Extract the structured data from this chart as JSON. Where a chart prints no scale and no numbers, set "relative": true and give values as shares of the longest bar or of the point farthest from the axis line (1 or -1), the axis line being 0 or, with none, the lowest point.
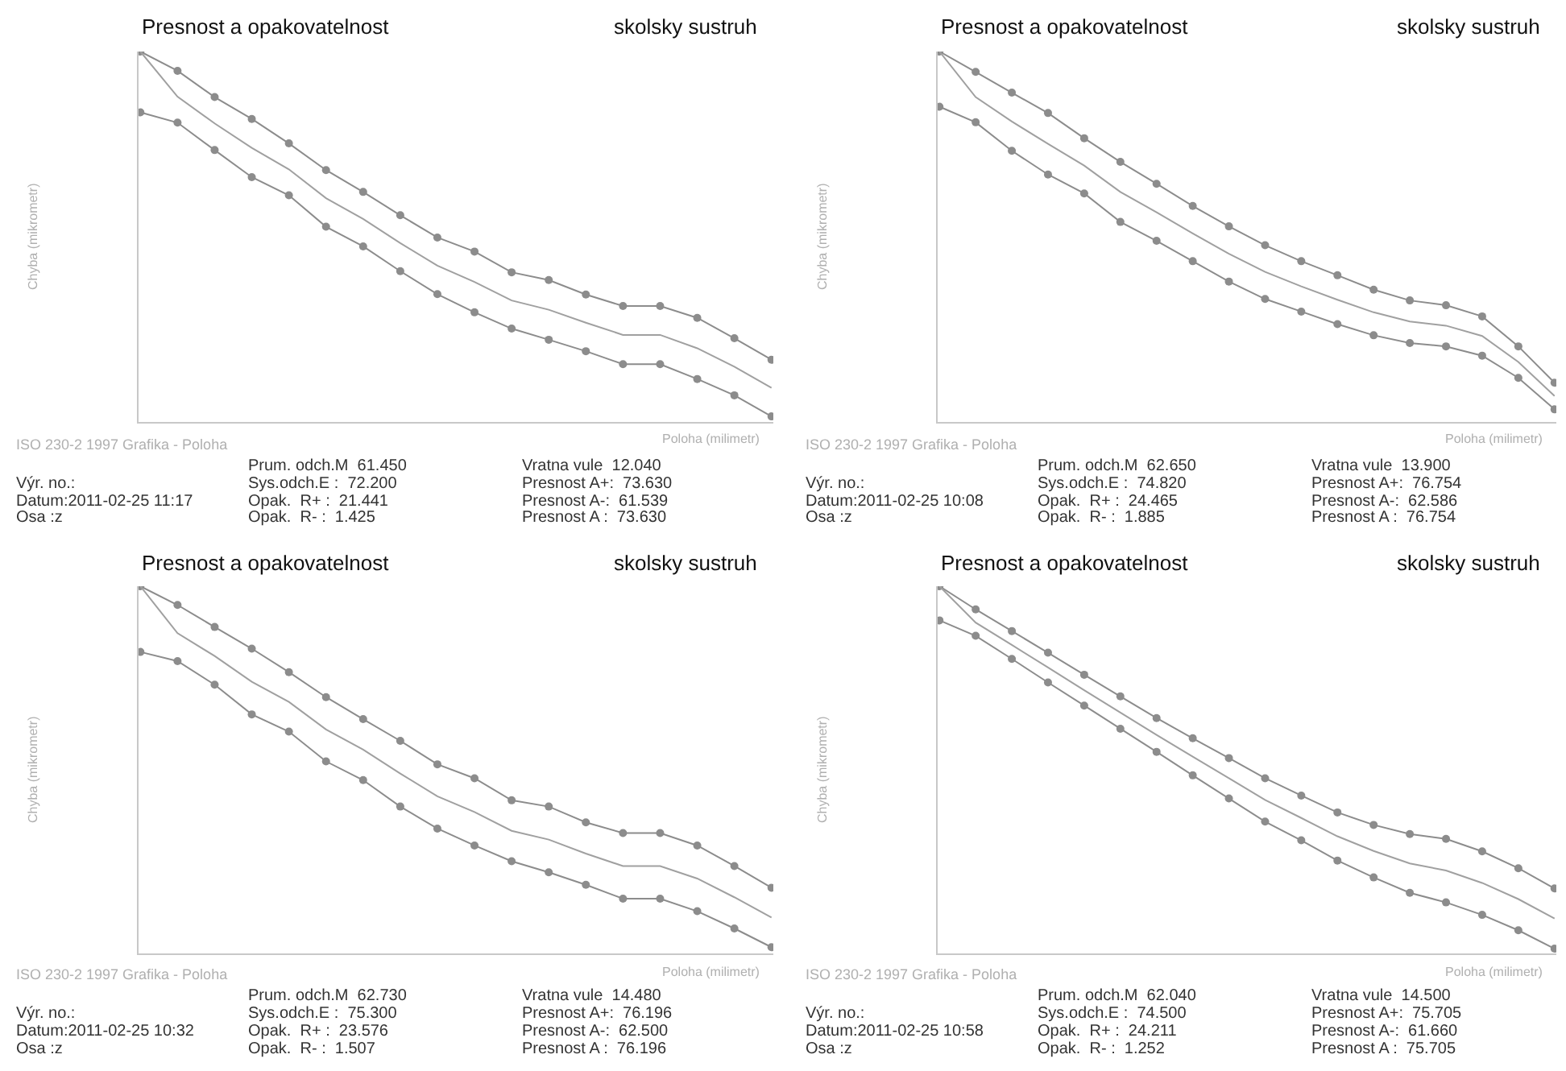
{
  "chart_data": [
    {
      "type": "line",
      "title": "Presnost a opakovatelnost",
      "subtitle": "skolsky sustruh",
      "xlabel": "Poloha (milimetr)",
      "ylabel": "Chyba (mikrometr)",
      "relative": true,
      "marker": "circle",
      "categories": [
        null,
        null,
        null,
        null,
        null,
        null,
        null,
        null,
        null,
        null,
        null,
        null,
        null,
        null,
        null,
        null,
        null,
        null
      ],
      "series": [
        {
          "color": "#8c8c8c",
          "values": [
            1.0,
            0.948,
            0.877,
            0.818,
            0.752,
            0.68,
            0.621,
            0.558,
            0.498,
            0.46,
            0.404,
            0.383,
            0.344,
            0.313,
            0.313,
            0.281,
            0.226,
            0.168
          ]
        },
        {
          "color": "#a0a0a0",
          "marker": "none",
          "values": [
            1.0,
            0.878,
            0.806,
            0.74,
            0.682,
            0.604,
            0.548,
            0.483,
            0.422,
            0.378,
            0.328,
            0.303,
            0.268,
            0.235,
            0.235,
            0.199,
            0.149,
            0.092
          ]
        },
        {
          "color": "#8c8c8c",
          "values": [
            0.836,
            0.808,
            0.734,
            0.661,
            0.612,
            0.527,
            0.474,
            0.407,
            0.345,
            0.296,
            0.252,
            0.222,
            0.191,
            0.156,
            0.156,
            0.116,
            0.072,
            0.015
          ]
        }
      ],
      "annotations": [
        "ISO 230-2 1997 Grafika - Poloha",
        "Výr. no.:",
        "Datum:2011-02-25 11:17",
        "Osa :z",
        "Prum. odch.M  61.450",
        "Sys.odch.E :  72.200",
        "Opak.  R+ :  21.441",
        "Opak.  R- :  1.425",
        "Vratna vule  12.040",
        "Presnost A+:  73.630",
        "Presnost A-:  61.539",
        "Presnost A :  73.630"
      ]
    },
    {
      "type": "line",
      "title": "Presnost a opakovatelnost",
      "subtitle": "skolsky sustruh",
      "xlabel": "Poloha (milimetr)",
      "ylabel": "Chyba (mikrometr)",
      "relative": true,
      "marker": "circle",
      "categories": [
        null,
        null,
        null,
        null,
        null,
        null,
        null,
        null,
        null,
        null,
        null,
        null,
        null,
        null,
        null,
        null,
        null,
        null
      ],
      "series": [
        {
          "color": "#8c8c8c",
          "values": [
            1.0,
            0.945,
            0.889,
            0.834,
            0.766,
            0.702,
            0.643,
            0.583,
            0.528,
            0.477,
            0.434,
            0.396,
            0.357,
            0.328,
            0.315,
            0.285,
            0.204,
            0.106
          ]
        },
        {
          "color": "#a0a0a0",
          "marker": "none",
          "values": [
            1.0,
            0.877,
            0.811,
            0.751,
            0.692,
            0.621,
            0.566,
            0.509,
            0.454,
            0.405,
            0.366,
            0.33,
            0.296,
            0.271,
            0.26,
            0.232,
            0.162,
            0.07
          ]
        },
        {
          "color": "#8c8c8c",
          "values": [
            0.851,
            0.809,
            0.732,
            0.668,
            0.617,
            0.54,
            0.489,
            0.434,
            0.379,
            0.332,
            0.298,
            0.264,
            0.234,
            0.213,
            0.204,
            0.179,
            0.119,
            0.034
          ]
        }
      ],
      "annotations": [
        "ISO 230-2 1997 Grafika - Poloha",
        "Výr. no.:",
        "Datum:2011-02-25 10:08",
        "Osa :z",
        "Prum. odch.M  62.650",
        "Sys.odch.E :  74.820",
        "Opak.  R+ :  24.465",
        "Opak.  R- :  1.885",
        "Vratna vule  13.900",
        "Presnost A+:  76.754",
        "Presnost A-:  62.586",
        "Presnost A :  76.754"
      ]
    },
    {
      "type": "line",
      "title": "Presnost a opakovatelnost",
      "subtitle": "skolsky sustruh",
      "xlabel": "Poloha (milimetr)",
      "ylabel": "Chyba (mikrometr)",
      "relative": true,
      "marker": "circle",
      "categories": [
        null,
        null,
        null,
        null,
        null,
        null,
        null,
        null,
        null,
        null,
        null,
        null,
        null,
        null,
        null,
        null,
        null,
        null
      ],
      "series": [
        {
          "color": "#8c8c8c",
          "values": [
            1.0,
            0.949,
            0.889,
            0.83,
            0.766,
            0.698,
            0.638,
            0.579,
            0.515,
            0.477,
            0.417,
            0.4,
            0.357,
            0.328,
            0.328,
            0.294,
            0.238,
            0.179
          ]
        },
        {
          "color": "#a0a0a0",
          "marker": "none",
          "values": [
            1.0,
            0.872,
            0.81,
            0.74,
            0.685,
            0.61,
            0.555,
            0.49,
            0.428,
            0.385,
            0.334,
            0.31,
            0.272,
            0.238,
            0.238,
            0.204,
            0.153,
            0.098
          ]
        },
        {
          "color": "#8c8c8c",
          "values": [
            0.821,
            0.796,
            0.732,
            0.651,
            0.604,
            0.523,
            0.472,
            0.4,
            0.34,
            0.294,
            0.251,
            0.221,
            0.187,
            0.149,
            0.149,
            0.115,
            0.068,
            0.017
          ]
        }
      ],
      "annotations": [
        "ISO 230-2 1997 Grafika - Poloha",
        "Výr. no.:",
        "Datum:2011-02-25 10:32",
        "Osa :z",
        "Prum. odch.M  62.730",
        "Sys.odch.E :  75.300",
        "Opak.  R+ :  23.576",
        "Opak.  R- :  1.507",
        "Vratna vule  14.480",
        "Presnost A+:  76.196",
        "Presnost A-:  62.500",
        "Presnost A :  76.196"
      ]
    },
    {
      "type": "line",
      "title": "Presnost a opakovatelnost",
      "subtitle": "skolsky sustruh",
      "xlabel": "Poloha (milimetr)",
      "ylabel": "Chyba (mikrometr)",
      "relative": true,
      "marker": "circle",
      "categories": [
        null,
        null,
        null,
        null,
        null,
        null,
        null,
        null,
        null,
        null,
        null,
        null,
        null,
        null,
        null,
        null,
        null,
        null
      ],
      "series": [
        {
          "color": "#8c8c8c",
          "values": [
            1.0,
            0.937,
            0.878,
            0.819,
            0.759,
            0.7,
            0.641,
            0.586,
            0.532,
            0.477,
            0.43,
            0.384,
            0.35,
            0.325,
            0.312,
            0.278,
            0.232,
            0.177
          ]
        },
        {
          "color": "#a0a0a0",
          "marker": "none",
          "values": [
            1.0,
            0.901,
            0.84,
            0.779,
            0.717,
            0.656,
            0.595,
            0.536,
            0.477,
            0.418,
            0.369,
            0.319,
            0.279,
            0.245,
            0.226,
            0.192,
            0.148,
            0.095
          ]
        },
        {
          "color": "#8c8c8c",
          "values": [
            0.907,
            0.865,
            0.802,
            0.738,
            0.675,
            0.612,
            0.549,
            0.485,
            0.422,
            0.359,
            0.308,
            0.253,
            0.207,
            0.165,
            0.139,
            0.105,
            0.063,
            0.013
          ]
        }
      ],
      "annotations": [
        "ISO 230-2 1997 Grafika - Poloha",
        "Výr. no.:",
        "Datum:2011-02-25 10:58",
        "Osa :z",
        "Prum. odch.M  62.040",
        "Sys.odch.E :  74.500",
        "Opak.  R+ :  24.211",
        "Opak.  R- :  1.252",
        "Vratna vule  14.500",
        "Presnost A+:  75.705",
        "Presnost A-:  61.660",
        "Presnost A :  75.705"
      ]
    }
  ]
}
